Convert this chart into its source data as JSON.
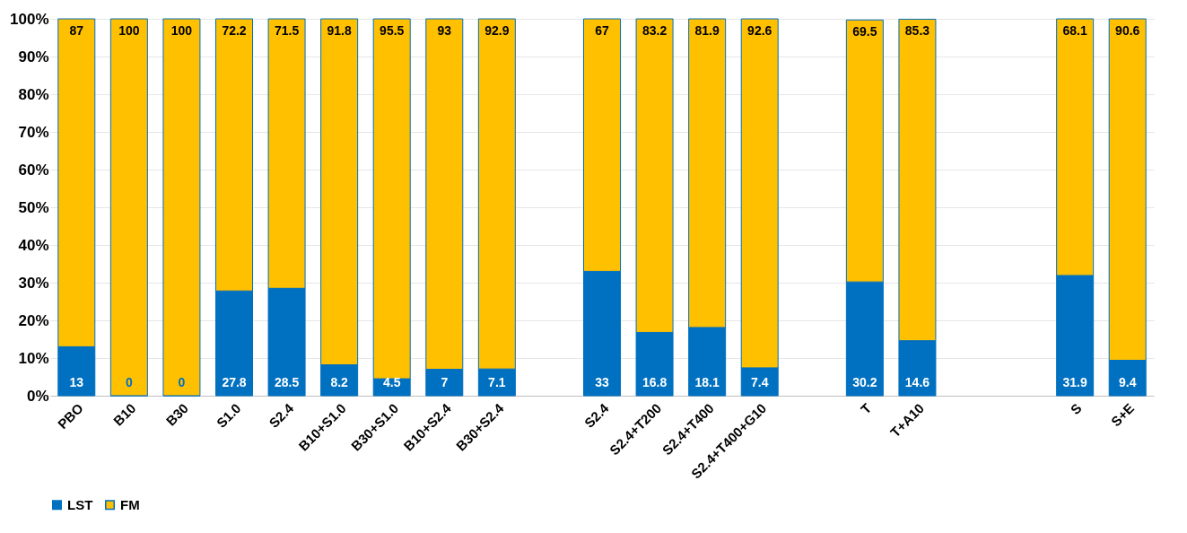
{
  "chart_data": {
    "type": "bar",
    "stacked": true,
    "categories": [
      "PBO",
      "B10",
      "B30",
      "S1.0",
      "S2.4",
      "B10+S1.0",
      "B30+S1.0",
      "B10+S2.4",
      "B30+S2.4",
      null,
      "S2.4",
      "S2.4+T200",
      "S2.4+T400",
      "S2.4+T400+G10",
      null,
      "T",
      "T+A10",
      null,
      null,
      "S",
      "S+E"
    ],
    "series": [
      {
        "name": "LST",
        "color": "#0070c0",
        "values": [
          13,
          0,
          0,
          27.8,
          28.5,
          8.2,
          4.5,
          7,
          7.1,
          null,
          33,
          16.8,
          18.1,
          7.4,
          null,
          30.2,
          14.6,
          null,
          null,
          31.9,
          9.4
        ]
      },
      {
        "name": "FM",
        "color": "#ffc000",
        "values": [
          87,
          100,
          100,
          72.2,
          71.5,
          91.8,
          95.5,
          93,
          92.9,
          null,
          67,
          83.2,
          81.9,
          92.6,
          null,
          69.5,
          85.3,
          null,
          null,
          68.1,
          90.6
        ]
      }
    ],
    "ylim": [
      0,
      100
    ],
    "yticks": [
      {
        "value": 0,
        "label": "0%"
      },
      {
        "value": 10,
        "label": "10%"
      },
      {
        "value": 20,
        "label": "20%"
      },
      {
        "value": 30,
        "label": "30%"
      },
      {
        "value": 40,
        "label": "40%"
      },
      {
        "value": 50,
        "label": "50%"
      },
      {
        "value": 60,
        "label": "60%"
      },
      {
        "value": 70,
        "label": "70%"
      },
      {
        "value": 80,
        "label": "80%"
      },
      {
        "value": 90,
        "label": "90%"
      },
      {
        "value": 100,
        "label": "100%"
      }
    ],
    "grid": "y",
    "legend": "bottom",
    "data_labels": true
  }
}
